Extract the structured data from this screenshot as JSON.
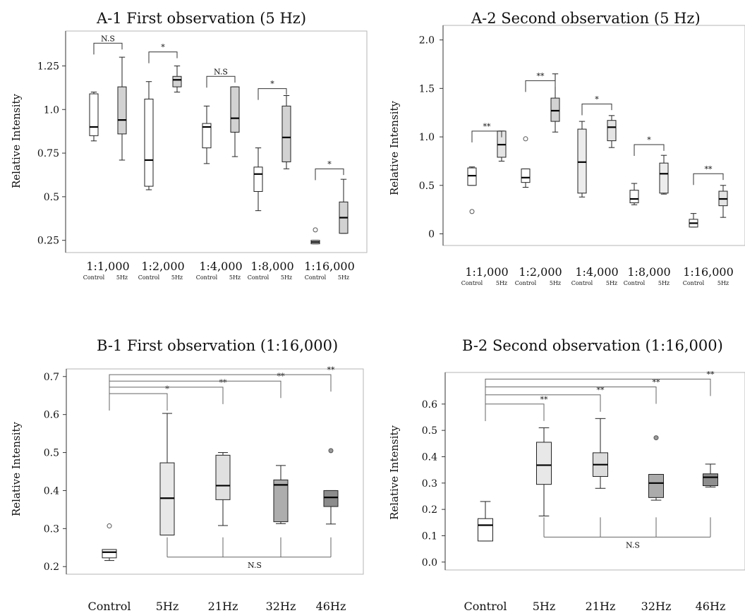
{
  "chart_data": [
    {
      "id": "A1",
      "type": "boxplot",
      "title": "A-1 First observation (5 Hz)",
      "ylabel": "Relative Intensity",
      "ylim": [
        0.18,
        1.45
      ],
      "yticks": [
        0.25,
        0.5,
        0.75,
        1.0,
        1.25
      ],
      "ytick_labels": [
        "0.25",
        "0.5",
        "0.75",
        "1.0",
        "1.25"
      ],
      "groups": [
        "1:1,000",
        "1:2,000",
        "1:4,000",
        "1:8,000",
        "1:16,000"
      ],
      "sublabels": [
        "Control",
        "5Hz"
      ],
      "boxes": [
        {
          "group": 0,
          "sub": 0,
          "fill": "#ffffff",
          "min": 0.82,
          "q1": 0.85,
          "median": 0.9,
          "q3": 1.09,
          "max": 1.1,
          "outliers": []
        },
        {
          "group": 0,
          "sub": 1,
          "fill": "#d2d2d2",
          "min": 0.71,
          "q1": 0.86,
          "median": 0.94,
          "q3": 1.13,
          "max": 1.3,
          "outliers": []
        },
        {
          "group": 1,
          "sub": 0,
          "fill": "#ffffff",
          "min": 0.54,
          "q1": 0.56,
          "median": 0.71,
          "q3": 1.06,
          "max": 1.16,
          "outliers": []
        },
        {
          "group": 1,
          "sub": 1,
          "fill": "#d2d2d2",
          "min": 1.1,
          "q1": 1.13,
          "median": 1.17,
          "q3": 1.19,
          "max": 1.25,
          "outliers": []
        },
        {
          "group": 2,
          "sub": 0,
          "fill": "#ffffff",
          "min": 0.69,
          "q1": 0.78,
          "median": 0.9,
          "q3": 0.92,
          "max": 1.02,
          "outliers": []
        },
        {
          "group": 2,
          "sub": 1,
          "fill": "#d2d2d2",
          "min": 0.73,
          "q1": 0.87,
          "median": 0.95,
          "q3": 1.13,
          "max": 1.13,
          "outliers": []
        },
        {
          "group": 3,
          "sub": 0,
          "fill": "#ffffff",
          "min": 0.42,
          "q1": 0.53,
          "median": 0.63,
          "q3": 0.67,
          "max": 0.78,
          "outliers": []
        },
        {
          "group": 3,
          "sub": 1,
          "fill": "#d2d2d2",
          "min": 0.66,
          "q1": 0.7,
          "median": 0.84,
          "q3": 1.02,
          "max": 1.08,
          "outliers": []
        },
        {
          "group": 4,
          "sub": 0,
          "fill": "#ffffff",
          "min": 0.23,
          "q1": 0.23,
          "median": 0.24,
          "q3": 0.25,
          "max": 0.25,
          "outliers": [
            0.31
          ]
        },
        {
          "group": 4,
          "sub": 1,
          "fill": "#d2d2d2",
          "min": 0.29,
          "q1": 0.29,
          "median": 0.38,
          "q3": 0.47,
          "max": 0.6,
          "outliers": []
        }
      ],
      "annotations": [
        {
          "group": 0,
          "label": "N.S",
          "y": 1.38
        },
        {
          "group": 1,
          "label": "*",
          "y": 1.33
        },
        {
          "group": 2,
          "label": "N.S",
          "y": 1.19
        },
        {
          "group": 3,
          "label": "*",
          "y": 1.12
        },
        {
          "group": 4,
          "label": "*",
          "y": 0.66
        }
      ]
    },
    {
      "id": "A2",
      "type": "boxplot",
      "title": "A-2 Second observation (5 Hz)",
      "ylabel": "Relative Intensity",
      "ylim": [
        -0.12,
        2.15
      ],
      "yticks": [
        0,
        0.5,
        1.0,
        1.5,
        2.0
      ],
      "ytick_labels": [
        "0",
        "0.5",
        "1.0",
        "1.5",
        "2.0"
      ],
      "groups": [
        "1:1,000",
        "1:2,000",
        "1:4,000",
        "1:8,000",
        "1:16,000"
      ],
      "sublabels": [
        "Control",
        "5Hz"
      ],
      "boxes": [
        {
          "group": 0,
          "sub": 0,
          "fill": "#ffffff",
          "min": 0.5,
          "q1": 0.5,
          "median": 0.6,
          "q3": 0.68,
          "max": 0.69,
          "outliers": [
            0.23
          ]
        },
        {
          "group": 0,
          "sub": 1,
          "fill": "#e4e4e4",
          "min": 0.75,
          "q1": 0.79,
          "median": 0.92,
          "q3": 1.06,
          "max": 1.06,
          "outliers": []
        },
        {
          "group": 1,
          "sub": 0,
          "fill": "#ffffff",
          "min": 0.48,
          "q1": 0.53,
          "median": 0.58,
          "q3": 0.67,
          "max": 0.67,
          "outliers": [
            0.98
          ]
        },
        {
          "group": 1,
          "sub": 1,
          "fill": "#d2d2d2",
          "min": 1.05,
          "q1": 1.16,
          "median": 1.27,
          "q3": 1.4,
          "max": 1.65,
          "outliers": []
        },
        {
          "group": 2,
          "sub": 0,
          "fill": "#ececec",
          "min": 0.38,
          "q1": 0.42,
          "median": 0.74,
          "q3": 1.08,
          "max": 1.16,
          "outliers": []
        },
        {
          "group": 2,
          "sub": 1,
          "fill": "#e4e4e4",
          "min": 0.89,
          "q1": 0.96,
          "median": 1.1,
          "q3": 1.17,
          "max": 1.22,
          "outliers": []
        },
        {
          "group": 3,
          "sub": 0,
          "fill": "#ffffff",
          "min": 0.3,
          "q1": 0.32,
          "median": 0.36,
          "q3": 0.45,
          "max": 0.52,
          "outliers": []
        },
        {
          "group": 3,
          "sub": 1,
          "fill": "#ececec",
          "min": 0.41,
          "q1": 0.42,
          "median": 0.62,
          "q3": 0.73,
          "max": 0.81,
          "outliers": []
        },
        {
          "group": 4,
          "sub": 0,
          "fill": "#ffffff",
          "min": 0.07,
          "q1": 0.07,
          "median": 0.11,
          "q3": 0.15,
          "max": 0.21,
          "outliers": []
        },
        {
          "group": 4,
          "sub": 1,
          "fill": "#e4e4e4",
          "min": 0.17,
          "q1": 0.29,
          "median": 0.36,
          "q3": 0.44,
          "max": 0.5,
          "outliers": []
        }
      ],
      "annotations": [
        {
          "group": 0,
          "label": "**",
          "y": 1.06
        },
        {
          "group": 1,
          "label": "**",
          "y": 1.58
        },
        {
          "group": 2,
          "label": "*",
          "y": 1.34
        },
        {
          "group": 3,
          "label": "*",
          "y": 0.92
        },
        {
          "group": 4,
          "label": "**",
          "y": 0.62
        }
      ]
    },
    {
      "id": "B1",
      "type": "boxplot",
      "title": "B-1 First observation (1:16,000)",
      "ylabel": "Relative Intensity",
      "ylim": [
        0.18,
        0.72
      ],
      "yticks": [
        0.2,
        0.3,
        0.4,
        0.5,
        0.6,
        0.7
      ],
      "ytick_labels": [
        "0.2",
        "0.3",
        "0.4",
        "0.5",
        "0.6",
        "0.7"
      ],
      "categories": [
        "Control",
        "5Hz",
        "21Hz",
        "32Hz",
        "46Hz"
      ],
      "boxes": [
        {
          "index": 0,
          "fill": "#ffffff",
          "min": 0.216,
          "q1": 0.223,
          "median": 0.238,
          "q3": 0.245,
          "max": 0.245,
          "outliers": [
            0.307
          ]
        },
        {
          "index": 1,
          "fill": "#e8e8e8",
          "min": 0.283,
          "q1": 0.283,
          "median": 0.38,
          "q3": 0.473,
          "max": 0.603,
          "outliers": []
        },
        {
          "index": 2,
          "fill": "#e0e0e0",
          "min": 0.308,
          "q1": 0.376,
          "median": 0.413,
          "q3": 0.493,
          "max": 0.5,
          "outliers": []
        },
        {
          "index": 3,
          "fill": "#adadad",
          "min": 0.313,
          "q1": 0.318,
          "median": 0.415,
          "q3": 0.428,
          "max": 0.466,
          "outliers": []
        },
        {
          "index": 4,
          "fill": "#8c8c8c",
          "min": 0.312,
          "q1": 0.358,
          "median": 0.382,
          "q3": 0.4,
          "max": 0.4,
          "outliers": [
            0.505
          ]
        }
      ],
      "comparisons": [
        {
          "to": 1,
          "label": "*",
          "y": 0.655
        },
        {
          "to": 2,
          "label": "**",
          "y": 0.672
        },
        {
          "to": 3,
          "label": "**",
          "y": 0.688
        },
        {
          "to": 4,
          "label": "**",
          "y": 0.705
        }
      ],
      "ns": {
        "label": "N.S",
        "y": 0.225,
        "from": 1,
        "to": 4
      }
    },
    {
      "id": "B2",
      "type": "boxplot",
      "title": "B-2 Second observation (1:16,000)",
      "ylabel": "Relative Intensity",
      "ylim": [
        -0.03,
        0.72
      ],
      "yticks": [
        0.0,
        0.1,
        0.2,
        0.3,
        0.4,
        0.5,
        0.6
      ],
      "ytick_labels": [
        "0.0",
        "0.1",
        "0.2",
        "0.3",
        "0.4",
        "0.5",
        "0.6"
      ],
      "categories": [
        "Control",
        "5Hz",
        "21Hz",
        "32Hz",
        "46Hz"
      ],
      "boxes": [
        {
          "index": 0,
          "fill": "#ffffff",
          "min": 0.08,
          "q1": 0.08,
          "median": 0.14,
          "q3": 0.165,
          "max": 0.23,
          "outliers": []
        },
        {
          "index": 1,
          "fill": "#e8e8e8",
          "min": 0.175,
          "q1": 0.295,
          "median": 0.368,
          "q3": 0.455,
          "max": 0.51,
          "outliers": []
        },
        {
          "index": 2,
          "fill": "#dcdcdc",
          "min": 0.28,
          "q1": 0.325,
          "median": 0.37,
          "q3": 0.415,
          "max": 0.545,
          "outliers": []
        },
        {
          "index": 3,
          "fill": "#ababab",
          "min": 0.235,
          "q1": 0.245,
          "median": 0.3,
          "q3": 0.333,
          "max": 0.333,
          "outliers": [
            0.472
          ]
        },
        {
          "index": 4,
          "fill": "#8e8e8e",
          "min": 0.285,
          "q1": 0.29,
          "median": 0.322,
          "q3": 0.335,
          "max": 0.372,
          "outliers": []
        }
      ],
      "comparisons": [
        {
          "to": 1,
          "label": "**",
          "y": 0.6
        },
        {
          "to": 2,
          "label": "**",
          "y": 0.635
        },
        {
          "to": 3,
          "label": "**",
          "y": 0.665
        },
        {
          "to": 4,
          "label": "**",
          "y": 0.695
        }
      ],
      "ns": {
        "label": "N.S",
        "y": 0.095,
        "from": 1,
        "to": 4
      }
    }
  ]
}
